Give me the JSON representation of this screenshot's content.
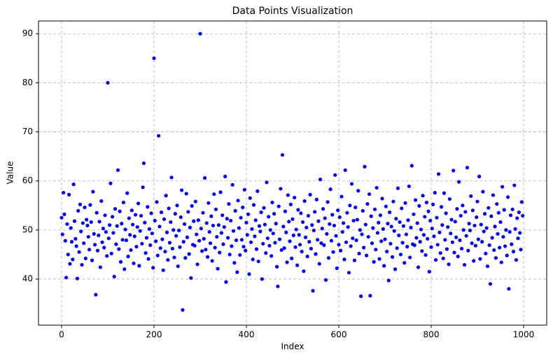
{
  "chart_data": {
    "type": "scatter",
    "title": "Data Points Visualization",
    "x_label": "Index",
    "y_label": "Value",
    "color": "#0000ff",
    "grid": true,
    "xlim": [
      -50,
      1050
    ],
    "ylim": [
      30.6,
      92.6
    ],
    "xticks": [
      0,
      200,
      400,
      600,
      800,
      1000
    ],
    "yticks": [
      40,
      50,
      60,
      70,
      80,
      90
    ],
    "x": [
      0,
      2,
      4,
      6,
      8,
      10,
      12,
      14,
      16,
      18,
      20,
      22,
      24,
      26,
      28,
      30,
      32,
      34,
      36,
      38,
      40,
      42,
      44,
      46,
      48,
      50,
      52,
      54,
      56,
      58,
      60,
      62,
      64,
      66,
      68,
      70,
      72,
      74,
      76,
      78,
      80,
      82,
      84,
      86,
      88,
      90,
      92,
      94,
      96,
      98,
      100,
      102,
      104,
      106,
      108,
      110,
      112,
      114,
      116,
      118,
      120,
      122,
      124,
      126,
      128,
      130,
      132,
      134,
      136,
      138,
      140,
      142,
      144,
      146,
      148,
      150,
      152,
      154,
      156,
      158,
      160,
      162,
      164,
      166,
      168,
      170,
      172,
      174,
      176,
      178,
      180,
      182,
      184,
      186,
      188,
      190,
      192,
      194,
      196,
      198,
      200,
      202,
      204,
      206,
      208,
      210,
      212,
      214,
      216,
      218,
      220,
      222,
      224,
      226,
      228,
      230,
      232,
      234,
      236,
      238,
      240,
      242,
      244,
      246,
      248,
      250,
      252,
      254,
      256,
      258,
      260,
      262,
      264,
      266,
      268,
      270,
      272,
      274,
      276,
      278,
      280,
      282,
      284,
      286,
      288,
      290,
      292,
      294,
      296,
      298,
      300,
      302,
      304,
      306,
      308,
      310,
      312,
      314,
      316,
      318,
      320,
      322,
      324,
      326,
      328,
      330,
      332,
      334,
      336,
      338,
      340,
      342,
      344,
      346,
      348,
      350,
      352,
      354,
      356,
      358,
      360,
      362,
      364,
      366,
      368,
      370,
      372,
      374,
      376,
      378,
      380,
      382,
      384,
      386,
      388,
      390,
      392,
      394,
      396,
      398,
      400,
      402,
      404,
      406,
      408,
      410,
      412,
      414,
      416,
      418,
      420,
      422,
      424,
      426,
      428,
      430,
      432,
      434,
      436,
      438,
      440,
      442,
      444,
      446,
      448,
      450,
      452,
      454,
      456,
      458,
      460,
      462,
      464,
      466,
      468,
      470,
      472,
      474,
      476,
      478,
      480,
      482,
      484,
      486,
      488,
      490,
      492,
      494,
      496,
      498,
      500,
      502,
      504,
      506,
      508,
      510,
      512,
      514,
      516,
      518,
      520,
      522,
      524,
      526,
      528,
      530,
      532,
      534,
      536,
      538,
      540,
      542,
      544,
      546,
      548,
      550,
      552,
      554,
      556,
      558,
      560,
      562,
      564,
      566,
      568,
      570,
      572,
      574,
      576,
      578,
      580,
      582,
      584,
      586,
      588,
      590,
      592,
      594,
      596,
      598,
      600,
      602,
      604,
      606,
      608,
      610,
      612,
      614,
      616,
      618,
      620,
      622,
      624,
      626,
      628,
      630,
      632,
      634,
      636,
      638,
      640,
      642,
      644,
      646,
      648,
      650,
      652,
      654,
      656,
      658,
      660,
      662,
      664,
      666,
      668,
      670,
      672,
      674,
      676,
      678,
      680,
      682,
      684,
      686,
      688,
      690,
      692,
      694,
      696,
      698,
      700,
      702,
      704,
      706,
      708,
      710,
      712,
      714,
      716,
      718,
      720,
      722,
      724,
      726,
      728,
      730,
      732,
      734,
      736,
      738,
      740,
      742,
      744,
      746,
      748,
      750,
      752,
      754,
      756,
      758,
      760,
      762,
      764,
      766,
      768,
      770,
      772,
      774,
      776,
      778,
      780,
      782,
      784,
      786,
      788,
      790,
      792,
      794,
      796,
      798,
      800,
      802,
      804,
      806,
      808,
      810,
      812,
      814,
      816,
      818,
      820,
      822,
      824,
      826,
      828,
      830,
      832,
      834,
      836,
      838,
      840,
      842,
      844,
      846,
      848,
      850,
      852,
      854,
      856,
      858,
      860,
      862,
      864,
      866,
      868,
      870,
      872,
      874,
      876,
      878,
      880,
      882,
      884,
      886,
      888,
      890,
      892,
      894,
      896,
      898,
      900,
      902,
      904,
      906,
      908,
      910,
      912,
      914,
      916,
      918,
      920,
      922,
      924,
      926,
      928,
      930,
      932,
      934,
      936,
      938,
      940,
      942,
      944,
      946,
      948,
      950,
      952,
      954,
      956,
      958,
      960,
      962,
      964,
      966,
      968,
      970,
      972,
      974,
      976,
      978,
      980,
      982,
      984,
      986,
      988,
      990,
      992,
      994,
      996,
      998
    ],
    "values": [
      52.5,
      49.1,
      57.6,
      53.2,
      47.8,
      40.3,
      51.2,
      45.0,
      57.2,
      43.1,
      50.4,
      47.6,
      44.0,
      59.3,
      51.8,
      48.2,
      46.7,
      40.1,
      53.9,
      45.5,
      55.2,
      49.7,
      42.9,
      51.4,
      47.3,
      54.6,
      44.2,
      52.1,
      50.9,
      48.6,
      46.0,
      55.1,
      51.6,
      43.8,
      57.8,
      49.2,
      47.0,
      36.8,
      53.5,
      45.8,
      48.9,
      51.7,
      42.4,
      55.9,
      47.5,
      50.3,
      46.4,
      53.0,
      49.6,
      44.7,
      80.0,
      48.3,
      51.0,
      59.5,
      45.2,
      52.7,
      49.4,
      40.5,
      54.3,
      47.1,
      50.8,
      62.2,
      46.1,
      53.8,
      43.5,
      51.3,
      48.0,
      55.6,
      42.0,
      50.1,
      47.9,
      57.5,
      44.6,
      52.4,
      49.0,
      45.9,
      54.0,
      51.1,
      43.2,
      48.7,
      53.1,
      46.6,
      50.6,
      55.4,
      42.7,
      49.8,
      52.9,
      47.2,
      58.7,
      63.6,
      51.5,
      45.3,
      48.4,
      54.7,
      44.1,
      50.2,
      46.9,
      53.4,
      49.3,
      42.3,
      85.0,
      51.9,
      47.7,
      55.7,
      44.8,
      69.2,
      50.7,
      46.3,
      53.6,
      48.1,
      41.8,
      52.2,
      45.6,
      57.0,
      49.5,
      43.9,
      54.4,
      47.4,
      51.6,
      60.7,
      46.2,
      50.0,
      44.4,
      53.3,
      48.8,
      55.0,
      42.6,
      49.9,
      46.5,
      52.6,
      58.1,
      33.7,
      47.6,
      51.2,
      44.3,
      57.4,
      48.5,
      53.7,
      45.1,
      50.5,
      40.2,
      54.9,
      47.0,
      51.8,
      46.8,
      55.8,
      49.1,
      43.0,
      52.0,
      47.8,
      90.0,
      50.3,
      45.7,
      53.5,
      48.2,
      60.6,
      46.0,
      51.4,
      44.5,
      55.5,
      49.6,
      47.3,
      52.8,
      43.7,
      50.9,
      57.3,
      46.4,
      54.2,
      48.6,
      42.1,
      51.0,
      45.4,
      57.7,
      49.4,
      53.0,
      47.1,
      50.6,
      60.9,
      39.4,
      52.3,
      48.4,
      55.3,
      45.0,
      51.9,
      46.7,
      59.2,
      49.8,
      43.3,
      53.9,
      47.9,
      41.4,
      56.0,
      50.4,
      44.9,
      52.5,
      48.0,
      54.6,
      46.6,
      58.2,
      45.8,
      51.5,
      49.0,
      53.2,
      41.0,
      56.5,
      47.5,
      50.2,
      44.0,
      55.1,
      48.7,
      52.0,
      46.1,
      57.9,
      43.6,
      50.8,
      49.7,
      53.6,
      40.0,
      47.2,
      54.5,
      51.1,
      45.3,
      59.7,
      48.3,
      52.7,
      46.8,
      50.0,
      44.7,
      55.6,
      49.3,
      53.3,
      47.4,
      51.3,
      42.5,
      38.5,
      54.8,
      48.1,
      58.4,
      45.9,
      65.3,
      50.7,
      46.3,
      53.8,
      49.5,
      43.4,
      57.1,
      51.7,
      47.7,
      55.2,
      44.2,
      52.2,
      48.9,
      56.6,
      46.5,
      50.1,
      42.8,
      54.1,
      49.0,
      47.0,
      53.4,
      45.6,
      51.6,
      41.6,
      55.9,
      48.5,
      50.5,
      44.6,
      52.9,
      47.6,
      57.2,
      46.2,
      51.0,
      37.6,
      49.9,
      53.7,
      45.1,
      56.2,
      48.0,
      51.8,
      43.1,
      60.3,
      47.3,
      50.3,
      54.3,
      46.9,
      52.4,
      39.8,
      49.2,
      55.7,
      44.3,
      51.2,
      58.3,
      47.8,
      53.1,
      45.5,
      50.9,
      61.2,
      48.8,
      42.2,
      54.0,
      47.0,
      52.6,
      45.8,
      56.8,
      49.6,
      51.4,
      44.0,
      62.2,
      47.5,
      53.5,
      50.6,
      41.3,
      55.0,
      46.7,
      59.4,
      48.3,
      51.9,
      43.8,
      54.6,
      47.9,
      52.1,
      58.0,
      45.2,
      50.0,
      36.5,
      49.1,
      53.9,
      46.4,
      62.9,
      51.1,
      44.8,
      55.3,
      48.6,
      57.3,
      36.6,
      52.8,
      47.3,
      50.4,
      43.5,
      54.2,
      46.0,
      58.6,
      49.4,
      51.5,
      44.1,
      53.0,
      47.7,
      56.4,
      50.2,
      42.7,
      48.1,
      54.8,
      45.6,
      51.3,
      39.7,
      53.6,
      47.2,
      50.7,
      44.5,
      55.8,
      49.8,
      42.0,
      52.3,
      46.3,
      58.5,
      48.9,
      51.6,
      45.0,
      54.4,
      47.4,
      50.8,
      43.3,
      55.5,
      49.1,
      46.6,
      52.0,
      58.9,
      44.4,
      50.5,
      63.1,
      47.1,
      53.2,
      46.9,
      56.1,
      48.4,
      51.4,
      42.4,
      54.9,
      47.6,
      50.1,
      45.7,
      57.0,
      49.0,
      52.7,
      44.9,
      55.6,
      48.2,
      53.8,
      41.5,
      51.9,
      46.5,
      50.3,
      55.2,
      48.7,
      57.6,
      43.9,
      52.5,
      47.0,
      61.4,
      49.5,
      45.3,
      54.7,
      51.0,
      44.2,
      57.5,
      48.0,
      53.4,
      46.1,
      50.6,
      43.0,
      56.3,
      49.3,
      52.1,
      47.5,
      62.1,
      45.4,
      51.7,
      48.5,
      54.3,
      44.6,
      59.8,
      47.9,
      52.9,
      46.2,
      55.0,
      50.0,
      42.9,
      53.7,
      48.8,
      62.7,
      45.8,
      51.3,
      49.9,
      56.9,
      47.3,
      54.0,
      43.7,
      50.9,
      46.8,
      52.6,
      55.8,
      48.1,
      60.9,
      44.1,
      51.1,
      47.6,
      57.8,
      49.7,
      53.3,
      45.2,
      50.4,
      42.6,
      54.5,
      46.9,
      39.0,
      52.8,
      48.4,
      57.1,
      45.9,
      50.7,
      44.3,
      55.3,
      49.2,
      53.5,
      46.4,
      51.6,
      43.4,
      58.8,
      48.6,
      54.1,
      46.7,
      50.0,
      44.8,
      56.7,
      38.0,
      49.6,
      53.0,
      47.1,
      54.2,
      45.6,
      59.1,
      50.2,
      43.9,
      52.4,
      48.3,
      53.6,
      49.4,
      46.0,
      55.7,
      52.9
    ]
  }
}
